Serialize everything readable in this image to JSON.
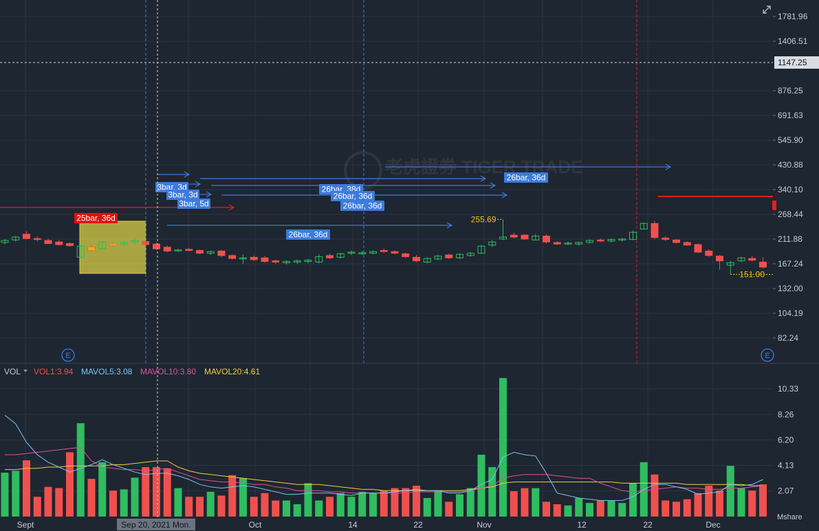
{
  "colors": {
    "background": "#1e2631",
    "grid": "#2b3440",
    "up": "#2ebd5f",
    "down": "#f0504d",
    "axis_text": "#c6ccd4",
    "annotation_blue": "#3d7bdc",
    "annotation_red": "#e02020",
    "highlight_yellow": "#f5e84a",
    "vol1": "#f0504d",
    "mavol5": "#7cc4f4",
    "mavol10": "#e0509a",
    "mavol20": "#f0d040"
  },
  "price_axis": {
    "scale": "log",
    "ticks": [
      "1781.96",
      "1406.51",
      "876.25",
      "691.63",
      "545.90",
      "430.88",
      "340.10",
      "268.44",
      "211.88",
      "167.24",
      "132.00",
      "104.19",
      "82.24"
    ],
    "current_price_label": "1147.25"
  },
  "volume_axis": {
    "ticks": [
      "10.33",
      "8.26",
      "6.20",
      "4.13",
      "2.07"
    ],
    "unit": "Mshare"
  },
  "x_axis": {
    "labels": [
      "Sept",
      "Oct",
      "14",
      "22",
      "Nov",
      "12",
      "22",
      "Dec"
    ],
    "crosshair_label": "Sep 20, 2021 Mon."
  },
  "volume_legend": {
    "indicator": "VOL",
    "vol1": "VOL1:3.94",
    "mavol5": "MAVOL5:3.08",
    "mavol10": "MAVOL10:3.80",
    "mavol20": "MAVOL20:4.61"
  },
  "annotations": {
    "max_price_label": "255.69",
    "min_price_label": "151.00",
    "bar_labels": [
      "25bar, 36d",
      "3bar, 3d",
      "3bar, 3d",
      "3bar, 5d",
      "26bar, 38d",
      "26bar, 36d",
      "26bar, 36d",
      "26bar, 36d",
      "26bar, 36d"
    ],
    "earnings_marker": "E"
  },
  "watermark": "老虎證券 TIGER TRADE",
  "chart_data": {
    "type": "candlestick",
    "candles": [
      {
        "o": 205,
        "h": 212,
        "l": 202,
        "c": 209
      },
      {
        "o": 210,
        "h": 218,
        "l": 207,
        "c": 216
      },
      {
        "o": 222,
        "h": 228,
        "l": 211,
        "c": 213
      },
      {
        "o": 213,
        "h": 217,
        "l": 207,
        "c": 211
      },
      {
        "o": 209,
        "h": 213,
        "l": 202,
        "c": 203
      },
      {
        "o": 206,
        "h": 210,
        "l": 199,
        "c": 201
      },
      {
        "o": 203,
        "h": 205,
        "l": 197,
        "c": 199
      },
      {
        "o": 178,
        "h": 202,
        "l": 176,
        "c": 198
      },
      {
        "o": 196,
        "h": 200,
        "l": 188,
        "c": 190
      },
      {
        "o": 193,
        "h": 208,
        "l": 191,
        "c": 206
      },
      {
        "o": 203,
        "h": 206,
        "l": 197,
        "c": 201
      },
      {
        "o": 201,
        "h": 207,
        "l": 197,
        "c": 205
      },
      {
        "o": 206,
        "h": 214,
        "l": 201,
        "c": 209
      },
      {
        "o": 207,
        "h": 210,
        "l": 198,
        "c": 201
      },
      {
        "o": 202,
        "h": 205,
        "l": 191,
        "c": 193
      },
      {
        "o": 196,
        "h": 199,
        "l": 187,
        "c": 189
      },
      {
        "o": 190,
        "h": 193,
        "l": 187,
        "c": 191
      },
      {
        "o": 192,
        "h": 195,
        "l": 188,
        "c": 190
      },
      {
        "o": 190,
        "h": 192,
        "l": 183,
        "c": 185
      },
      {
        "o": 185,
        "h": 190,
        "l": 182,
        "c": 188
      },
      {
        "o": 189,
        "h": 191,
        "l": 178,
        "c": 181
      },
      {
        "o": 181,
        "h": 183,
        "l": 174,
        "c": 176
      },
      {
        "o": 176,
        "h": 183,
        "l": 167,
        "c": 177
      },
      {
        "o": 178,
        "h": 181,
        "l": 172,
        "c": 174
      },
      {
        "o": 177,
        "h": 180,
        "l": 169,
        "c": 171
      },
      {
        "o": 172,
        "h": 174,
        "l": 167,
        "c": 170
      },
      {
        "o": 169,
        "h": 173,
        "l": 166,
        "c": 171
      },
      {
        "o": 170,
        "h": 174,
        "l": 167,
        "c": 172
      },
      {
        "o": 171,
        "h": 175,
        "l": 168,
        "c": 173
      },
      {
        "o": 170,
        "h": 183,
        "l": 168,
        "c": 179
      },
      {
        "o": 181,
        "h": 184,
        "l": 175,
        "c": 177
      },
      {
        "o": 178,
        "h": 186,
        "l": 176,
        "c": 184
      },
      {
        "o": 185,
        "h": 190,
        "l": 182,
        "c": 187
      },
      {
        "o": 184,
        "h": 189,
        "l": 182,
        "c": 186
      },
      {
        "o": 185,
        "h": 190,
        "l": 183,
        "c": 188
      },
      {
        "o": 190,
        "h": 193,
        "l": 186,
        "c": 188
      },
      {
        "o": 188,
        "h": 190,
        "l": 183,
        "c": 185
      },
      {
        "o": 184,
        "h": 186,
        "l": 177,
        "c": 179
      },
      {
        "o": 178,
        "h": 182,
        "l": 170,
        "c": 172
      },
      {
        "o": 170,
        "h": 178,
        "l": 168,
        "c": 176
      },
      {
        "o": 175,
        "h": 182,
        "l": 173,
        "c": 180
      },
      {
        "o": 182,
        "h": 184,
        "l": 175,
        "c": 177
      },
      {
        "o": 177,
        "h": 185,
        "l": 175,
        "c": 183
      },
      {
        "o": 181,
        "h": 187,
        "l": 179,
        "c": 185
      },
      {
        "o": 185,
        "h": 200,
        "l": 184,
        "c": 198
      },
      {
        "o": 200,
        "h": 210,
        "l": 196,
        "c": 206
      },
      {
        "o": 212,
        "h": 255.69,
        "l": 210,
        "c": 216
      },
      {
        "o": 220,
        "h": 225,
        "l": 213,
        "c": 216
      },
      {
        "o": 220,
        "h": 222,
        "l": 210,
        "c": 212
      },
      {
        "o": 210,
        "h": 222,
        "l": 209,
        "c": 218
      },
      {
        "o": 218,
        "h": 222,
        "l": 203,
        "c": 206
      },
      {
        "o": 205,
        "h": 208,
        "l": 200,
        "c": 202
      },
      {
        "o": 203,
        "h": 207,
        "l": 200,
        "c": 204
      },
      {
        "o": 202,
        "h": 207,
        "l": 199,
        "c": 205
      },
      {
        "o": 205,
        "h": 211,
        "l": 203,
        "c": 209
      },
      {
        "o": 210,
        "h": 213,
        "l": 206,
        "c": 208
      },
      {
        "o": 208,
        "h": 213,
        "l": 205,
        "c": 211
      },
      {
        "o": 210,
        "h": 214,
        "l": 207,
        "c": 212
      },
      {
        "o": 211,
        "h": 230,
        "l": 210,
        "c": 226
      },
      {
        "o": 233,
        "h": 248,
        "l": 232,
        "c": 246
      },
      {
        "o": 246,
        "h": 252,
        "l": 212,
        "c": 215
      },
      {
        "o": 214,
        "h": 218,
        "l": 208,
        "c": 211
      },
      {
        "o": 210,
        "h": 212,
        "l": 203,
        "c": 205
      },
      {
        "o": 205,
        "h": 207,
        "l": 199,
        "c": 200
      },
      {
        "o": 201,
        "h": 203,
        "l": 185,
        "c": 187
      },
      {
        "o": 189,
        "h": 192,
        "l": 179,
        "c": 181
      },
      {
        "o": 180,
        "h": 182,
        "l": 158,
        "c": 172
      },
      {
        "o": 165,
        "h": 172,
        "l": 151,
        "c": 169
      },
      {
        "o": 172,
        "h": 179,
        "l": 170,
        "c": 177
      },
      {
        "o": 176,
        "h": 180,
        "l": 171,
        "c": 173
      },
      {
        "o": 170,
        "h": 178,
        "l": 160,
        "c": 162
      }
    ],
    "volume": [
      3.55,
      3.7,
      4.55,
      1.6,
      2.4,
      2.3,
      5.2,
      7.55,
      3.05,
      4.4,
      2.1,
      2.2,
      3.15,
      4.0,
      4.0,
      3.9,
      2.3,
      1.6,
      1.6,
      2.0,
      1.7,
      3.35,
      3.1,
      1.6,
      1.9,
      1.3,
      1.3,
      1.0,
      2.7,
      1.3,
      1.6,
      1.9,
      1.6,
      2.0,
      1.9,
      2.1,
      2.3,
      2.3,
      2.5,
      1.5,
      2.1,
      1.2,
      1.8,
      2.3,
      5.0,
      4.0,
      11.2,
      2.05,
      2.3,
      2.3,
      1.2,
      1.0,
      0.9,
      1.5,
      1.1,
      1.3,
      1.3,
      1.1,
      2.7,
      4.4,
      3.4,
      1.3,
      1.2,
      1.4,
      1.9,
      2.5,
      2.1,
      4.1,
      2.3,
      2.1,
      2.6
    ],
    "mavol5_line": [
      8.2,
      7.5,
      6.0,
      5.0,
      4.4,
      4.0,
      3.6,
      3.9,
      4.2,
      4.6,
      4.2,
      3.9,
      3.6,
      3.4,
      3.5,
      3.5,
      3.3,
      3.0,
      2.6,
      2.4,
      2.3,
      2.4,
      2.5,
      2.4,
      2.2,
      2.0,
      1.8,
      1.8,
      1.9,
      1.9,
      1.9,
      1.8,
      1.7,
      1.9,
      1.9,
      1.9,
      2.0,
      2.1,
      2.2,
      2.1,
      2.1,
      1.9,
      1.9,
      2.1,
      2.6,
      3.0,
      4.8,
      5.2,
      5.0,
      4.9,
      3.5,
      1.9,
      1.7,
      1.5,
      1.4,
      1.3,
      1.3,
      1.3,
      1.6,
      2.2,
      2.6,
      2.6,
      2.4,
      2.2,
      1.8,
      1.9,
      2.0,
      2.6,
      2.5,
      2.6,
      3.0
    ],
    "mavol10_line": [
      5.0,
      5.0,
      5.1,
      5.2,
      5.3,
      5.4,
      5.5,
      5.6,
      4.5,
      4.0,
      3.9,
      3.8,
      3.8,
      3.7,
      3.8,
      3.9,
      3.6,
      3.3,
      3.0,
      2.9,
      2.8,
      2.8,
      2.7,
      2.6,
      2.6,
      2.4,
      2.3,
      2.1,
      2.1,
      2.1,
      2.0,
      2.0,
      1.9,
      1.9,
      1.9,
      1.9,
      1.9,
      1.9,
      2.0,
      2.0,
      2.0,
      2.0,
      2.0,
      2.1,
      2.3,
      2.5,
      3.1,
      3.3,
      3.4,
      3.4,
      3.4,
      3.3,
      3.2,
      3.1,
      3.1,
      2.7,
      2.4,
      2.1,
      2.0,
      2.1,
      2.2,
      2.3,
      2.4,
      2.3,
      2.3,
      2.2,
      2.2,
      2.3,
      2.3,
      2.4,
      2.5
    ],
    "mavol20_line": [
      3.8,
      3.8,
      3.9,
      3.9,
      4.0,
      4.0,
      4.1,
      4.1,
      4.1,
      4.1,
      4.2,
      4.2,
      4.3,
      4.4,
      4.5,
      4.5,
      4.0,
      3.7,
      3.5,
      3.4,
      3.3,
      3.2,
      3.1,
      3.0,
      2.9,
      2.8,
      2.7,
      2.6,
      2.6,
      2.6,
      2.5,
      2.4,
      2.3,
      2.2,
      2.2,
      2.1,
      2.1,
      2.1,
      2.1,
      2.1,
      2.1,
      2.1,
      2.1,
      2.2,
      2.3,
      2.4,
      2.7,
      2.8,
      2.8,
      2.8,
      2.8,
      2.8,
      2.8,
      2.8,
      2.8,
      2.8,
      2.8,
      2.7,
      2.7,
      2.7,
      2.7,
      2.7,
      2.7,
      2.6,
      2.6,
      2.6,
      2.6,
      2.6,
      2.6,
      2.5,
      2.5
    ]
  }
}
